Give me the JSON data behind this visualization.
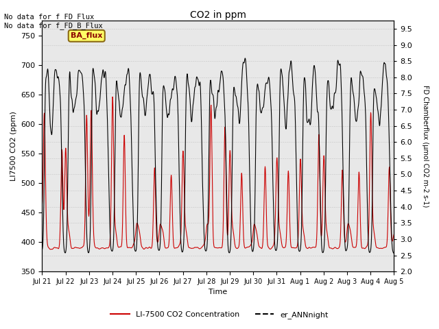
{
  "title": "CO2 in ppm",
  "xlabel": "Time",
  "ylabel_left": "LI7500 CO2 (ppm)",
  "ylabel_right": "FD Chamberflux (μmol CO2 m-2 s-1)",
  "ylim_left": [
    350,
    775
  ],
  "ylim_right": [
    2.0,
    9.75
  ],
  "yticks_left": [
    350,
    400,
    450,
    500,
    550,
    600,
    650,
    700,
    750
  ],
  "yticks_right": [
    2.0,
    2.5,
    3.0,
    3.5,
    4.0,
    4.5,
    5.0,
    5.5,
    6.0,
    6.5,
    7.0,
    7.5,
    8.0,
    8.5,
    9.0,
    9.5
  ],
  "annotation_top_left": "No data for f_FD_Flux\nNo data for f_FD_B_Flux",
  "annotation_ba_flux": "BA_flux",
  "legend_left_label": "LI-7500 CO2 Concentration",
  "legend_right_label": "er_ANNnight",
  "line_red_color": "#cc0000",
  "line_black_color": "#000000",
  "bg_color": "#e8e8e8",
  "x_tick_labels": [
    "Jul 21",
    "Jul 22",
    "Jul 23",
    "Jul 24",
    "Jul 25",
    "Jul 26",
    "Jul 27",
    "Jul 28",
    "Jul 29",
    "Jul 30",
    "Jul 31",
    "Aug 1",
    "Aug 2",
    "Aug 3",
    "Aug 4",
    "Aug 5"
  ],
  "n_points": 1440
}
